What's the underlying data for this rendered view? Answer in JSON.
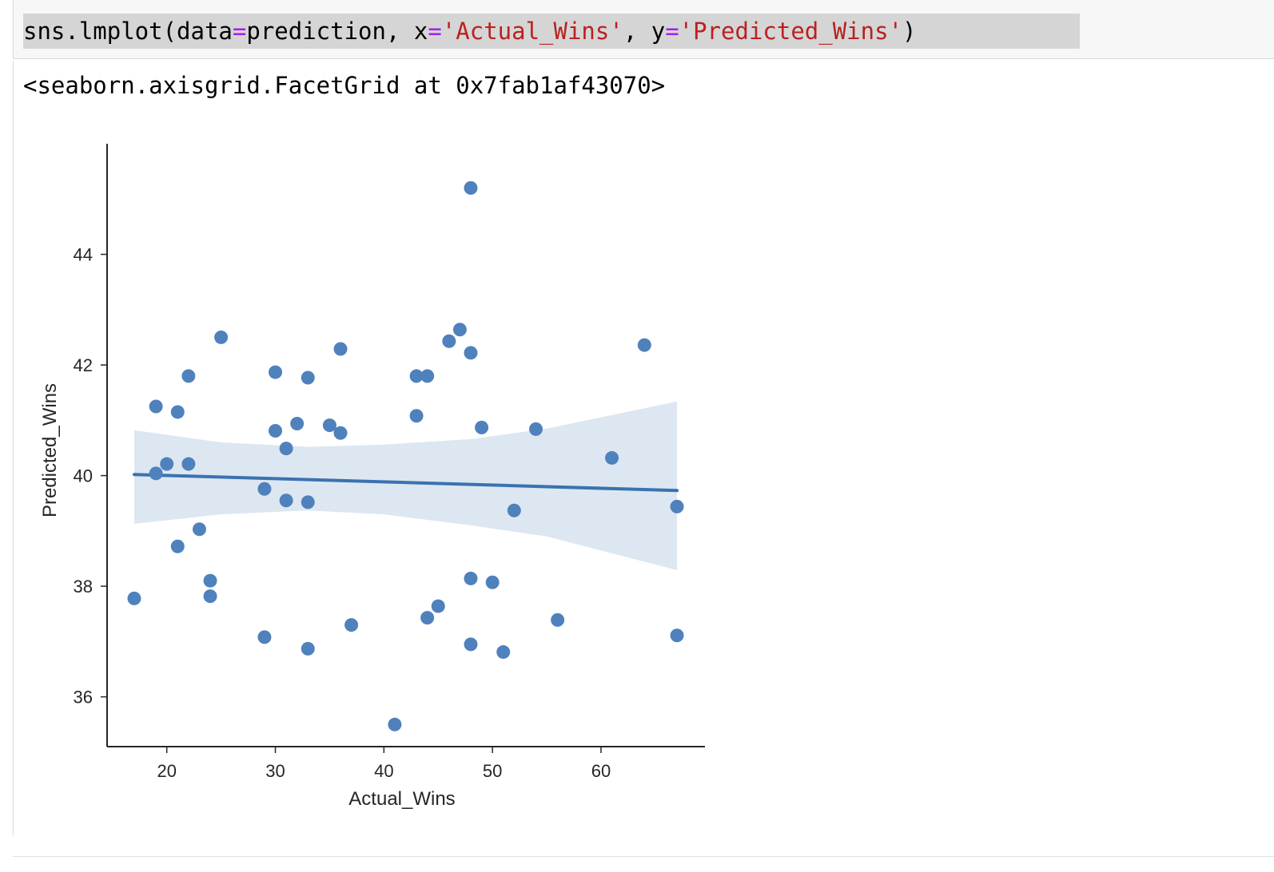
{
  "code": {
    "tokens": [
      {
        "text": "sns.lmplot(data",
        "color": "#000000"
      },
      {
        "text": "=",
        "color": "#a020f0"
      },
      {
        "text": "prediction, x",
        "color": "#000000"
      },
      {
        "text": "=",
        "color": "#a020f0"
      },
      {
        "text": "'Actual_Wins'",
        "color": "#ba2121"
      },
      {
        "text": ", y",
        "color": "#000000"
      },
      {
        "text": "=",
        "color": "#a020f0"
      },
      {
        "text": "'Predicted_Wins'",
        "color": "#ba2121"
      },
      {
        "text": ")",
        "color": "#000000"
      }
    ]
  },
  "output": {
    "repr": "<seaborn.axisgrid.FacetGrid at 0x7fab1af43070>"
  },
  "chart_data": {
    "type": "scatter",
    "xlabel": "Actual_Wins",
    "ylabel": "Predicted_Wins",
    "xlim": [
      14.5,
      69.5
    ],
    "ylim": [
      35.1,
      46.0
    ],
    "xticks": [
      20,
      30,
      40,
      50,
      60
    ],
    "yticks": [
      36,
      38,
      40,
      42,
      44
    ],
    "grid": false,
    "point_color": "#4f81bd",
    "line_color": "#3a72b0",
    "band_color": "#dde7f1",
    "points": [
      [
        17,
        37.78
      ],
      [
        19,
        40.04
      ],
      [
        19,
        41.25
      ],
      [
        20,
        40.21
      ],
      [
        21,
        41.15
      ],
      [
        21,
        38.72
      ],
      [
        22,
        41.8
      ],
      [
        22,
        40.21
      ],
      [
        23,
        39.03
      ],
      [
        24,
        38.1
      ],
      [
        24,
        37.82
      ],
      [
        25,
        42.5
      ],
      [
        29,
        39.76
      ],
      [
        29,
        37.08
      ],
      [
        30,
        41.87
      ],
      [
        30,
        40.81
      ],
      [
        31,
        40.49
      ],
      [
        31,
        39.55
      ],
      [
        32,
        40.94
      ],
      [
        33,
        41.77
      ],
      [
        33,
        39.52
      ],
      [
        33,
        36.87
      ],
      [
        35,
        40.91
      ],
      [
        36,
        42.29
      ],
      [
        36,
        40.77
      ],
      [
        37,
        37.3
      ],
      [
        41,
        35.5
      ],
      [
        43,
        41.8
      ],
      [
        43,
        41.08
      ],
      [
        44,
        41.8
      ],
      [
        44,
        37.43
      ],
      [
        45,
        37.64
      ],
      [
        46,
        42.43
      ],
      [
        47,
        42.64
      ],
      [
        48,
        45.2
      ],
      [
        48,
        42.22
      ],
      [
        48,
        38.14
      ],
      [
        48,
        36.95
      ],
      [
        49,
        40.87
      ],
      [
        50,
        38.07
      ],
      [
        51,
        36.81
      ],
      [
        52,
        39.37
      ],
      [
        54,
        40.84
      ],
      [
        56,
        37.39
      ],
      [
        61,
        40.32
      ],
      [
        64,
        42.36
      ],
      [
        67,
        39.44
      ],
      [
        67,
        37.11
      ]
    ],
    "fit_line": {
      "x": [
        17,
        67
      ],
      "y": [
        40.02,
        39.73
      ]
    },
    "ci_band": {
      "x": [
        17,
        25,
        33,
        40,
        48,
        55,
        67
      ],
      "upper": [
        40.82,
        40.6,
        40.52,
        40.56,
        40.66,
        40.85,
        41.34
      ],
      "lower": [
        39.13,
        39.3,
        39.37,
        39.3,
        39.1,
        38.9,
        38.29
      ]
    }
  }
}
